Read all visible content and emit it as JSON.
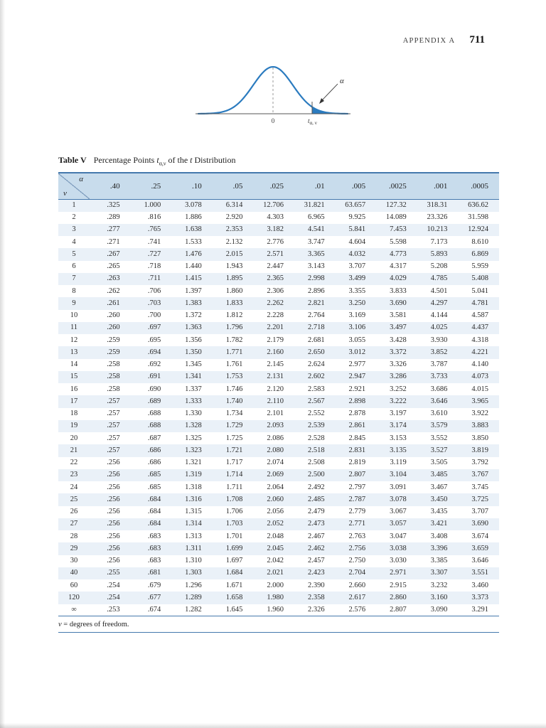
{
  "page": {
    "header_label": "APPENDIX A",
    "page_number": "711"
  },
  "figure": {
    "alpha": "α",
    "zero": "0",
    "t_base": "t",
    "t_sub": "α, ν",
    "curve_color": "#2b7bbf"
  },
  "colors": {
    "rule": "#4579ad",
    "header_bg": "#c8dcec",
    "row_alt": "#eaf1f8"
  },
  "table": {
    "title_label": "Table V",
    "title_pre": "Percentage Points ",
    "title_t": "t",
    "title_sub": "α,ν",
    "title_mid": " of the ",
    "title_t2": "t",
    "title_post": " Distribution",
    "corner_alpha": "α",
    "corner_nu": "ν",
    "columns": [
      ".40",
      ".25",
      ".10",
      ".05",
      ".025",
      ".01",
      ".005",
      ".0025",
      ".001",
      ".0005"
    ],
    "rows": [
      {
        "v": "1",
        "values": [
          ".325",
          "1.000",
          "3.078",
          "6.314",
          "12.706",
          "31.821",
          "63.657",
          "127.32",
          "318.31",
          "636.62"
        ]
      },
      {
        "v": "2",
        "values": [
          ".289",
          ".816",
          "1.886",
          "2.920",
          "4.303",
          "6.965",
          "9.925",
          "14.089",
          "23.326",
          "31.598"
        ]
      },
      {
        "v": "3",
        "values": [
          ".277",
          ".765",
          "1.638",
          "2.353",
          "3.182",
          "4.541",
          "5.841",
          "7.453",
          "10.213",
          "12.924"
        ]
      },
      {
        "v": "4",
        "values": [
          ".271",
          ".741",
          "1.533",
          "2.132",
          "2.776",
          "3.747",
          "4.604",
          "5.598",
          "7.173",
          "8.610"
        ]
      },
      {
        "v": "5",
        "values": [
          ".267",
          ".727",
          "1.476",
          "2.015",
          "2.571",
          "3.365",
          "4.032",
          "4.773",
          "5.893",
          "6.869"
        ]
      },
      {
        "v": "6",
        "values": [
          ".265",
          ".718",
          "1.440",
          "1.943",
          "2.447",
          "3.143",
          "3.707",
          "4.317",
          "5.208",
          "5.959"
        ]
      },
      {
        "v": "7",
        "values": [
          ".263",
          ".711",
          "1.415",
          "1.895",
          "2.365",
          "2.998",
          "3.499",
          "4.029",
          "4.785",
          "5.408"
        ]
      },
      {
        "v": "8",
        "values": [
          ".262",
          ".706",
          "1.397",
          "1.860",
          "2.306",
          "2.896",
          "3.355",
          "3.833",
          "4.501",
          "5.041"
        ]
      },
      {
        "v": "9",
        "values": [
          ".261",
          ".703",
          "1.383",
          "1.833",
          "2.262",
          "2.821",
          "3.250",
          "3.690",
          "4.297",
          "4.781"
        ]
      },
      {
        "v": "10",
        "values": [
          ".260",
          ".700",
          "1.372",
          "1.812",
          "2.228",
          "2.764",
          "3.169",
          "3.581",
          "4.144",
          "4.587"
        ]
      },
      {
        "v": "11",
        "values": [
          ".260",
          ".697",
          "1.363",
          "1.796",
          "2.201",
          "2.718",
          "3.106",
          "3.497",
          "4.025",
          "4.437"
        ]
      },
      {
        "v": "12",
        "values": [
          ".259",
          ".695",
          "1.356",
          "1.782",
          "2.179",
          "2.681",
          "3.055",
          "3.428",
          "3.930",
          "4.318"
        ]
      },
      {
        "v": "13",
        "values": [
          ".259",
          ".694",
          "1.350",
          "1.771",
          "2.160",
          "2.650",
          "3.012",
          "3.372",
          "3.852",
          "4.221"
        ]
      },
      {
        "v": "14",
        "values": [
          ".258",
          ".692",
          "1.345",
          "1.761",
          "2.145",
          "2.624",
          "2.977",
          "3.326",
          "3.787",
          "4.140"
        ]
      },
      {
        "v": "15",
        "values": [
          ".258",
          ".691",
          "1.341",
          "1.753",
          "2.131",
          "2.602",
          "2.947",
          "3.286",
          "3.733",
          "4.073"
        ]
      },
      {
        "v": "16",
        "values": [
          ".258",
          ".690",
          "1.337",
          "1.746",
          "2.120",
          "2.583",
          "2.921",
          "3.252",
          "3.686",
          "4.015"
        ]
      },
      {
        "v": "17",
        "values": [
          ".257",
          ".689",
          "1.333",
          "1.740",
          "2.110",
          "2.567",
          "2.898",
          "3.222",
          "3.646",
          "3.965"
        ]
      },
      {
        "v": "18",
        "values": [
          ".257",
          ".688",
          "1.330",
          "1.734",
          "2.101",
          "2.552",
          "2.878",
          "3.197",
          "3.610",
          "3.922"
        ]
      },
      {
        "v": "19",
        "values": [
          ".257",
          ".688",
          "1.328",
          "1.729",
          "2.093",
          "2.539",
          "2.861",
          "3.174",
          "3.579",
          "3.883"
        ]
      },
      {
        "v": "20",
        "values": [
          ".257",
          ".687",
          "1.325",
          "1.725",
          "2.086",
          "2.528",
          "2.845",
          "3.153",
          "3.552",
          "3.850"
        ]
      },
      {
        "v": "21",
        "values": [
          ".257",
          ".686",
          "1.323",
          "1.721",
          "2.080",
          "2.518",
          "2.831",
          "3.135",
          "3.527",
          "3.819"
        ]
      },
      {
        "v": "22",
        "values": [
          ".256",
          ".686",
          "1.321",
          "1.717",
          "2.074",
          "2.508",
          "2.819",
          "3.119",
          "3.505",
          "3.792"
        ]
      },
      {
        "v": "23",
        "values": [
          ".256",
          ".685",
          "1.319",
          "1.714",
          "2.069",
          "2.500",
          "2.807",
          "3.104",
          "3.485",
          "3.767"
        ]
      },
      {
        "v": "24",
        "values": [
          ".256",
          ".685",
          "1.318",
          "1.711",
          "2.064",
          "2.492",
          "2.797",
          "3.091",
          "3.467",
          "3.745"
        ]
      },
      {
        "v": "25",
        "values": [
          ".256",
          ".684",
          "1.316",
          "1.708",
          "2.060",
          "2.485",
          "2.787",
          "3.078",
          "3.450",
          "3.725"
        ]
      },
      {
        "v": "26",
        "values": [
          ".256",
          ".684",
          "1.315",
          "1.706",
          "2.056",
          "2.479",
          "2.779",
          "3.067",
          "3.435",
          "3.707"
        ]
      },
      {
        "v": "27",
        "values": [
          ".256",
          ".684",
          "1.314",
          "1.703",
          "2.052",
          "2.473",
          "2.771",
          "3.057",
          "3.421",
          "3.690"
        ]
      },
      {
        "v": "28",
        "values": [
          ".256",
          ".683",
          "1.313",
          "1.701",
          "2.048",
          "2.467",
          "2.763",
          "3.047",
          "3.408",
          "3.674"
        ]
      },
      {
        "v": "29",
        "values": [
          ".256",
          ".683",
          "1.311",
          "1.699",
          "2.045",
          "2.462",
          "2.756",
          "3.038",
          "3.396",
          "3.659"
        ]
      },
      {
        "v": "30",
        "values": [
          ".256",
          ".683",
          "1.310",
          "1.697",
          "2.042",
          "2.457",
          "2.750",
          "3.030",
          "3.385",
          "3.646"
        ]
      },
      {
        "v": "40",
        "values": [
          ".255",
          ".681",
          "1.303",
          "1.684",
          "2.021",
          "2.423",
          "2.704",
          "2.971",
          "3.307",
          "3.551"
        ]
      },
      {
        "v": "60",
        "values": [
          ".254",
          ".679",
          "1.296",
          "1.671",
          "2.000",
          "2.390",
          "2.660",
          "2.915",
          "3.232",
          "3.460"
        ]
      },
      {
        "v": "120",
        "values": [
          ".254",
          ".677",
          "1.289",
          "1.658",
          "1.980",
          "2.358",
          "2.617",
          "2.860",
          "3.160",
          "3.373"
        ]
      },
      {
        "v": "∞",
        "values": [
          ".253",
          ".674",
          "1.282",
          "1.645",
          "1.960",
          "2.326",
          "2.576",
          "2.807",
          "3.090",
          "3.291"
        ]
      }
    ],
    "footnote_symbol": "ν",
    "footnote_rest": " = degrees of freedom."
  }
}
